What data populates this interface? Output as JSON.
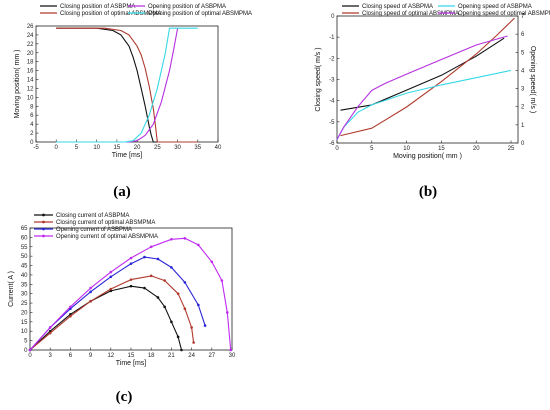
{
  "panels": {
    "a": {
      "caption": "(a)"
    },
    "b": {
      "caption": "(b)"
    },
    "c": {
      "caption": "(c)"
    }
  },
  "colors": {
    "black": "#111111",
    "darkred": "#b03a2e",
    "magenta": "#b630e0",
    "cyan": "#35d8e6",
    "blue": "#2a24d6",
    "purple": "#c02af0"
  },
  "chart_data": [
    {
      "id": "a",
      "type": "line",
      "xlabel": "Time [ms]",
      "ylabel": "Moving position( mm )",
      "xlim": [
        -5,
        40
      ],
      "ylim": [
        0,
        26
      ],
      "xticks": [
        -5,
        0,
        5,
        10,
        15,
        20,
        25,
        30,
        35,
        40
      ],
      "yticks": [
        0,
        2,
        4,
        6,
        8,
        10,
        12,
        14,
        16,
        18,
        20,
        22,
        24,
        26
      ],
      "series": [
        {
          "name": "Closing position of ASBPMA",
          "color": "#111111",
          "x": [
            0,
            10,
            14,
            16,
            18,
            19,
            20,
            21,
            22,
            23,
            23.5,
            24,
            35
          ],
          "y": [
            25.5,
            25.5,
            25,
            24,
            21.5,
            19,
            16,
            12,
            8,
            3.5,
            1.5,
            0,
            0
          ]
        },
        {
          "name": "Closing position of optimal ABSMPMA",
          "color": "#b03a2e",
          "x": [
            0,
            12,
            16,
            18,
            20,
            21,
            22,
            23,
            24,
            24.5,
            25,
            35
          ],
          "y": [
            25.5,
            25.5,
            25,
            24,
            21.5,
            19.5,
            16.5,
            12.5,
            7.5,
            4,
            0,
            0
          ]
        },
        {
          "name": "Opening position of ASBPMA",
          "color": "#b630e0",
          "x": [
            0,
            18,
            20,
            22,
            24,
            26,
            28,
            29,
            30
          ],
          "y": [
            0,
            0,
            0.3,
            1.5,
            4,
            9,
            16,
            20.5,
            25.5
          ]
        },
        {
          "name": "Opening position of optimal ABSMPMA",
          "color": "#35d8e6",
          "x": [
            0,
            17,
            19,
            21,
            23,
            25,
            27,
            28,
            35
          ],
          "y": [
            0,
            0,
            0.3,
            2,
            6,
            12,
            20,
            25.5,
            25.5
          ]
        }
      ]
    },
    {
      "id": "b",
      "type": "line",
      "xlabel": "Moving position( mm )",
      "ylabel": "Closing speed( m/s )",
      "y2label": "Opening speed( m/s )",
      "xlim": [
        0,
        26
      ],
      "ylim": [
        -6,
        0
      ],
      "y2lim": [
        0,
        7
      ],
      "xticks": [
        0,
        5,
        10,
        15,
        20,
        25
      ],
      "yticks": [
        -6,
        -5,
        -4,
        -3,
        -2,
        -1,
        0
      ],
      "y2ticks": [
        0,
        1,
        2,
        3,
        4,
        5,
        6,
        7
      ],
      "series": [
        {
          "name": "Closing speed of ASBPMA",
          "color": "#111111",
          "axis": "left",
          "x": [
            0.5,
            5,
            10,
            15,
            20,
            24
          ],
          "y": [
            -4.45,
            -4.2,
            -3.5,
            -2.8,
            -1.9,
            -1.05
          ]
        },
        {
          "name": "Closing speed of optimal ABSMPMA",
          "color": "#b03a2e",
          "axis": "left",
          "x": [
            0.5,
            5,
            10,
            15,
            20,
            23,
            25.5
          ],
          "y": [
            -5.65,
            -5.3,
            -4.3,
            -3.1,
            -1.8,
            -0.9,
            -0.1
          ]
        },
        {
          "name": "Opening speed of ASBPMA",
          "color": "#35d8e6",
          "axis": "right",
          "x": [
            0,
            1,
            3,
            5,
            10,
            15,
            20,
            25
          ],
          "y": [
            0.2,
            0.9,
            1.7,
            2.1,
            2.75,
            3.2,
            3.6,
            4.0
          ]
        },
        {
          "name": "Opening speed of optimal ABSMPMA",
          "color": "#b630e0",
          "axis": "right",
          "x": [
            0,
            1,
            3,
            5,
            7,
            10,
            15,
            20,
            24.5
          ],
          "y": [
            0.2,
            0.9,
            2.0,
            2.9,
            3.3,
            3.8,
            4.6,
            5.4,
            5.9
          ]
        }
      ]
    },
    {
      "id": "c",
      "type": "line",
      "xlabel": "Time [ms]",
      "ylabel": "Current( A )",
      "xlim": [
        0,
        30
      ],
      "ylim": [
        0,
        65
      ],
      "xticks": [
        0,
        3,
        6,
        9,
        12,
        15,
        18,
        21,
        24,
        27,
        30
      ],
      "yticks": [
        0,
        5,
        10,
        15,
        20,
        25,
        30,
        35,
        40,
        45,
        50,
        55,
        60,
        65
      ],
      "series": [
        {
          "name": "Closing current of  ASBPMA",
          "color": "#111111",
          "x": [
            0,
            3,
            6,
            9,
            12,
            15,
            17,
            19,
            20,
            21,
            22,
            22.5
          ],
          "y": [
            0,
            10,
            19,
            26,
            31.5,
            34,
            33,
            28,
            23,
            15,
            7,
            0
          ]
        },
        {
          "name": "Closing current of optimal ABSMPMA",
          "color": "#b03a2e",
          "x": [
            0,
            3,
            6,
            9,
            12,
            15,
            18,
            20,
            22,
            23,
            24,
            24.3
          ],
          "y": [
            0,
            9,
            18,
            26,
            32.5,
            37.5,
            39.5,
            37,
            30,
            22,
            12,
            4
          ]
        },
        {
          "name": "Opening current of  ASBPMA",
          "color": "#2a24d6",
          "x": [
            0,
            3,
            6,
            9,
            12,
            15,
            17,
            19,
            21,
            23,
            25,
            26
          ],
          "y": [
            0,
            12,
            22,
            31,
            39,
            46,
            49.5,
            48.5,
            44,
            36,
            24,
            13
          ]
        },
        {
          "name": "Opening current of optimal ABSMPMA",
          "color": "#c02af0",
          "x": [
            0,
            3,
            6,
            9,
            12,
            15,
            18,
            21,
            23,
            25,
            27,
            28.5,
            29.3,
            29.8
          ],
          "y": [
            0,
            12,
            23,
            33,
            41.5,
            49,
            55,
            59,
            59.5,
            56,
            47,
            37,
            20,
            0
          ]
        }
      ]
    }
  ]
}
